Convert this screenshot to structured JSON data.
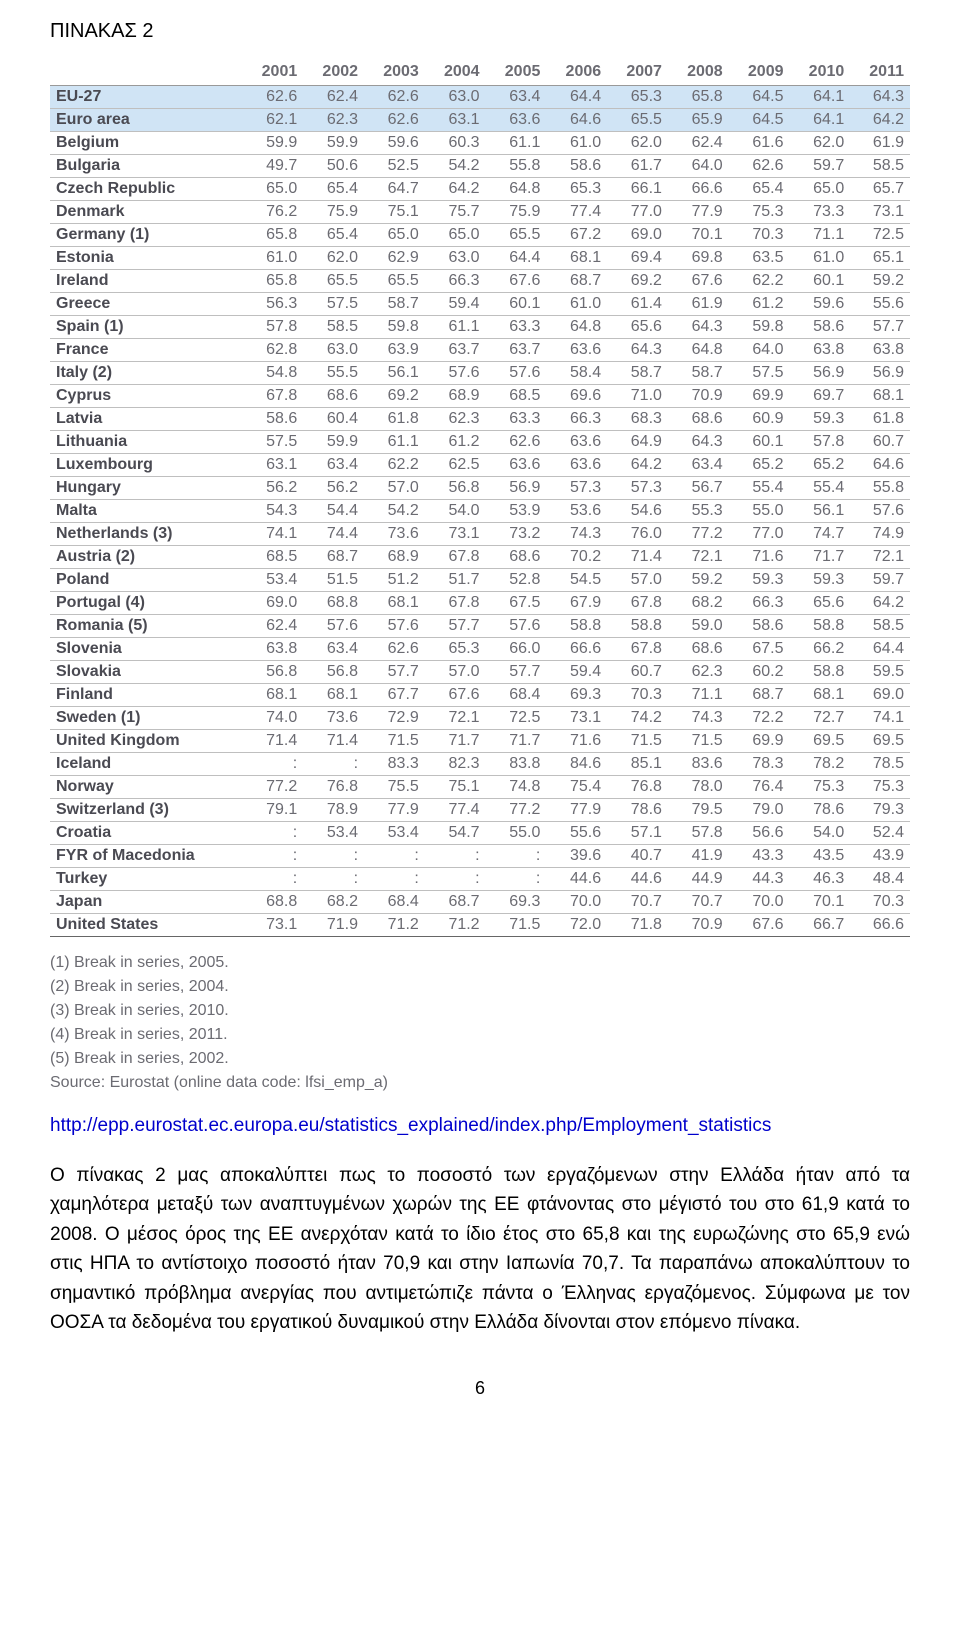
{
  "page_title": "ΠΙΝΑΚΑΣ 2",
  "table": {
    "type": "table",
    "header_bg": "#d0e4f5",
    "border_color": "#bfbfbf",
    "text_color": "#6b6b72",
    "row_label_color": "#4a4a52",
    "columns": [
      "",
      "2001",
      "2002",
      "2003",
      "2004",
      "2005",
      "2006",
      "2007",
      "2008",
      "2009",
      "2010",
      "2011"
    ],
    "groups": [
      {
        "label": "EU-27",
        "values": [
          "62.6",
          "62.4",
          "62.6",
          "63.0",
          "63.4",
          "64.4",
          "65.3",
          "65.8",
          "64.5",
          "64.1",
          "64.3"
        ]
      },
      {
        "label": "Euro area",
        "values": [
          "62.1",
          "62.3",
          "62.6",
          "63.1",
          "63.6",
          "64.6",
          "65.5",
          "65.9",
          "64.5",
          "64.1",
          "64.2"
        ]
      }
    ],
    "rows": [
      {
        "label": "Belgium",
        "values": [
          "59.9",
          "59.9",
          "59.6",
          "60.3",
          "61.1",
          "61.0",
          "62.0",
          "62.4",
          "61.6",
          "62.0",
          "61.9"
        ]
      },
      {
        "label": "Bulgaria",
        "values": [
          "49.7",
          "50.6",
          "52.5",
          "54.2",
          "55.8",
          "58.6",
          "61.7",
          "64.0",
          "62.6",
          "59.7",
          "58.5"
        ]
      },
      {
        "label": "Czech Republic",
        "values": [
          "65.0",
          "65.4",
          "64.7",
          "64.2",
          "64.8",
          "65.3",
          "66.1",
          "66.6",
          "65.4",
          "65.0",
          "65.7"
        ]
      },
      {
        "label": "Denmark",
        "values": [
          "76.2",
          "75.9",
          "75.1",
          "75.7",
          "75.9",
          "77.4",
          "77.0",
          "77.9",
          "75.3",
          "73.3",
          "73.1"
        ]
      },
      {
        "label": "Germany (1)",
        "values": [
          "65.8",
          "65.4",
          "65.0",
          "65.0",
          "65.5",
          "67.2",
          "69.0",
          "70.1",
          "70.3",
          "71.1",
          "72.5"
        ]
      },
      {
        "label": "Estonia",
        "values": [
          "61.0",
          "62.0",
          "62.9",
          "63.0",
          "64.4",
          "68.1",
          "69.4",
          "69.8",
          "63.5",
          "61.0",
          "65.1"
        ]
      },
      {
        "label": "Ireland",
        "values": [
          "65.8",
          "65.5",
          "65.5",
          "66.3",
          "67.6",
          "68.7",
          "69.2",
          "67.6",
          "62.2",
          "60.1",
          "59.2"
        ]
      },
      {
        "label": "Greece",
        "values": [
          "56.3",
          "57.5",
          "58.7",
          "59.4",
          "60.1",
          "61.0",
          "61.4",
          "61.9",
          "61.2",
          "59.6",
          "55.6"
        ]
      },
      {
        "label": "Spain (1)",
        "values": [
          "57.8",
          "58.5",
          "59.8",
          "61.1",
          "63.3",
          "64.8",
          "65.6",
          "64.3",
          "59.8",
          "58.6",
          "57.7"
        ]
      },
      {
        "label": "France",
        "values": [
          "62.8",
          "63.0",
          "63.9",
          "63.7",
          "63.7",
          "63.6",
          "64.3",
          "64.8",
          "64.0",
          "63.8",
          "63.8"
        ]
      },
      {
        "label": "Italy (2)",
        "values": [
          "54.8",
          "55.5",
          "56.1",
          "57.6",
          "57.6",
          "58.4",
          "58.7",
          "58.7",
          "57.5",
          "56.9",
          "56.9"
        ]
      },
      {
        "label": "Cyprus",
        "values": [
          "67.8",
          "68.6",
          "69.2",
          "68.9",
          "68.5",
          "69.6",
          "71.0",
          "70.9",
          "69.9",
          "69.7",
          "68.1"
        ]
      },
      {
        "label": "Latvia",
        "values": [
          "58.6",
          "60.4",
          "61.8",
          "62.3",
          "63.3",
          "66.3",
          "68.3",
          "68.6",
          "60.9",
          "59.3",
          "61.8"
        ]
      },
      {
        "label": "Lithuania",
        "values": [
          "57.5",
          "59.9",
          "61.1",
          "61.2",
          "62.6",
          "63.6",
          "64.9",
          "64.3",
          "60.1",
          "57.8",
          "60.7"
        ]
      },
      {
        "label": "Luxembourg",
        "values": [
          "63.1",
          "63.4",
          "62.2",
          "62.5",
          "63.6",
          "63.6",
          "64.2",
          "63.4",
          "65.2",
          "65.2",
          "64.6"
        ]
      },
      {
        "label": "Hungary",
        "values": [
          "56.2",
          "56.2",
          "57.0",
          "56.8",
          "56.9",
          "57.3",
          "57.3",
          "56.7",
          "55.4",
          "55.4",
          "55.8"
        ]
      },
      {
        "label": "Malta",
        "values": [
          "54.3",
          "54.4",
          "54.2",
          "54.0",
          "53.9",
          "53.6",
          "54.6",
          "55.3",
          "55.0",
          "56.1",
          "57.6"
        ]
      },
      {
        "label": "Netherlands (3)",
        "values": [
          "74.1",
          "74.4",
          "73.6",
          "73.1",
          "73.2",
          "74.3",
          "76.0",
          "77.2",
          "77.0",
          "74.7",
          "74.9"
        ]
      },
      {
        "label": "Austria (2)",
        "values": [
          "68.5",
          "68.7",
          "68.9",
          "67.8",
          "68.6",
          "70.2",
          "71.4",
          "72.1",
          "71.6",
          "71.7",
          "72.1"
        ]
      },
      {
        "label": "Poland",
        "values": [
          "53.4",
          "51.5",
          "51.2",
          "51.7",
          "52.8",
          "54.5",
          "57.0",
          "59.2",
          "59.3",
          "59.3",
          "59.7"
        ]
      },
      {
        "label": "Portugal (4)",
        "values": [
          "69.0",
          "68.8",
          "68.1",
          "67.8",
          "67.5",
          "67.9",
          "67.8",
          "68.2",
          "66.3",
          "65.6",
          "64.2"
        ]
      },
      {
        "label": "Romania (5)",
        "values": [
          "62.4",
          "57.6",
          "57.6",
          "57.7",
          "57.6",
          "58.8",
          "58.8",
          "59.0",
          "58.6",
          "58.8",
          "58.5"
        ]
      },
      {
        "label": "Slovenia",
        "values": [
          "63.8",
          "63.4",
          "62.6",
          "65.3",
          "66.0",
          "66.6",
          "67.8",
          "68.6",
          "67.5",
          "66.2",
          "64.4"
        ]
      },
      {
        "label": "Slovakia",
        "values": [
          "56.8",
          "56.8",
          "57.7",
          "57.0",
          "57.7",
          "59.4",
          "60.7",
          "62.3",
          "60.2",
          "58.8",
          "59.5"
        ]
      },
      {
        "label": "Finland",
        "values": [
          "68.1",
          "68.1",
          "67.7",
          "67.6",
          "68.4",
          "69.3",
          "70.3",
          "71.1",
          "68.7",
          "68.1",
          "69.0"
        ]
      },
      {
        "label": "Sweden (1)",
        "values": [
          "74.0",
          "73.6",
          "72.9",
          "72.1",
          "72.5",
          "73.1",
          "74.2",
          "74.3",
          "72.2",
          "72.7",
          "74.1"
        ]
      },
      {
        "label": "United Kingdom",
        "values": [
          "71.4",
          "71.4",
          "71.5",
          "71.7",
          "71.7",
          "71.6",
          "71.5",
          "71.5",
          "69.9",
          "69.5",
          "69.5"
        ]
      },
      {
        "label": "Iceland",
        "values": [
          ":",
          ":",
          "83.3",
          "82.3",
          "83.8",
          "84.6",
          "85.1",
          "83.6",
          "78.3",
          "78.2",
          "78.5"
        ]
      },
      {
        "label": "Norway",
        "values": [
          "77.2",
          "76.8",
          "75.5",
          "75.1",
          "74.8",
          "75.4",
          "76.8",
          "78.0",
          "76.4",
          "75.3",
          "75.3"
        ]
      },
      {
        "label": "Switzerland (3)",
        "values": [
          "79.1",
          "78.9",
          "77.9",
          "77.4",
          "77.2",
          "77.9",
          "78.6",
          "79.5",
          "79.0",
          "78.6",
          "79.3"
        ]
      },
      {
        "label": "Croatia",
        "values": [
          ":",
          "53.4",
          "53.4",
          "54.7",
          "55.0",
          "55.6",
          "57.1",
          "57.8",
          "56.6",
          "54.0",
          "52.4"
        ]
      },
      {
        "label": "FYR of Macedonia",
        "values": [
          ":",
          ":",
          ":",
          ":",
          ":",
          "39.6",
          "40.7",
          "41.9",
          "43.3",
          "43.5",
          "43.9"
        ]
      },
      {
        "label": "Turkey",
        "values": [
          ":",
          ":",
          ":",
          ":",
          ":",
          "44.6",
          "44.6",
          "44.9",
          "44.3",
          "46.3",
          "48.4"
        ]
      },
      {
        "label": "Japan",
        "values": [
          "68.8",
          "68.2",
          "68.4",
          "68.7",
          "69.3",
          "70.0",
          "70.7",
          "70.7",
          "70.0",
          "70.1",
          "70.3"
        ]
      },
      {
        "label": "United States",
        "values": [
          "73.1",
          "71.9",
          "71.2",
          "71.2",
          "71.5",
          "72.0",
          "71.8",
          "70.9",
          "67.6",
          "66.7",
          "66.6"
        ]
      }
    ]
  },
  "footnotes": [
    "(1) Break in series, 2005.",
    "(2) Break in series, 2004.",
    "(3) Break in series, 2010.",
    "(4) Break in series, 2011.",
    "(5) Break in series, 2002.",
    "Source: Eurostat (online data code: lfsi_emp_a)"
  ],
  "source_url": "http://epp.eurostat.ec.europa.eu/statistics_explained/index.php/Employment_statistics",
  "commentary": "Ο πίνακας 2 μας αποκαλύπτει πως το ποσοστό των εργαζόμενων στην Ελλάδα ήταν από τα χαμηλότερα μεταξύ των αναπτυγμένων χωρών της ΕΕ φτάνοντας στο μέγιστό του στο 61,9 κατά το 2008. Ο μέσος όρος της ΕΕ ανερχόταν κατά το ίδιο έτος στο 65,8 και της ευρωζώνης στο 65,9 ενώ στις ΗΠΑ το αντίστοιχο ποσοστό ήταν 70,9 και στην Ιαπωνία 70,7. Τα παραπάνω αποκαλύπτουν το σημαντικό πρόβλημα ανεργίας που αντιμετώπιζε πάντα ο Έλληνας εργαζόμενος. Σύμφωνα με τον ΟΟΣΑ τα δεδομένα του εργατικού δυναμικού στην Ελλάδα δίνονται στον επόμενο πίνακα.",
  "page_number": "6"
}
